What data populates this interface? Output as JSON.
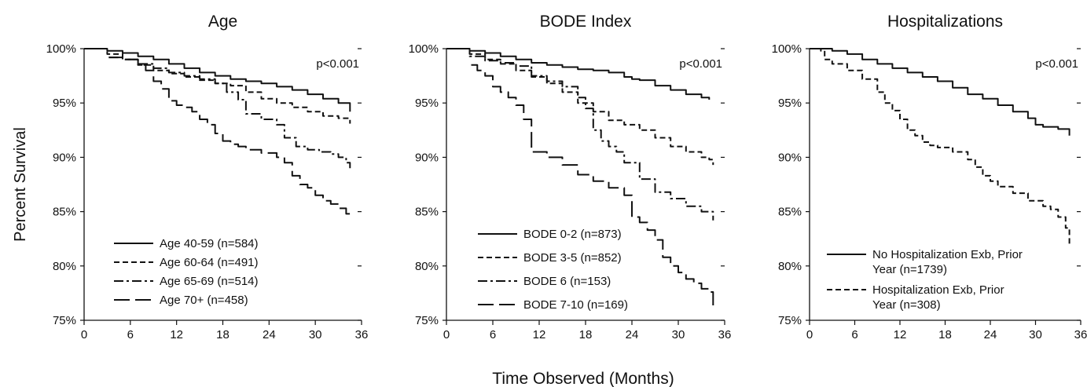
{
  "figure": {
    "ylabel": "Percent Survival",
    "xlabel": "Time Observed (Months)"
  },
  "chart_data": [
    {
      "type": "line",
      "title": "Age",
      "xlim": [
        0,
        36
      ],
      "ylim": [
        75,
        100
      ],
      "x_ticks": [
        0,
        6,
        12,
        18,
        24,
        30,
        36
      ],
      "y_ticks": [
        75,
        80,
        85,
        90,
        95,
        100
      ],
      "y_tick_labels": [
        "75%",
        "80%",
        "85%",
        "90%",
        "95%",
        "100%"
      ],
      "annotation": "p<0.001",
      "legend_position": "bottom-left",
      "series": [
        {
          "name": "Age 40-59 (n=584)",
          "style": "solid",
          "x": [
            0,
            3,
            5,
            7,
            9,
            11,
            13,
            15,
            17,
            19,
            21,
            23,
            25,
            27,
            29,
            31,
            33,
            34.5
          ],
          "y": [
            100,
            99.8,
            99.6,
            99.3,
            99.0,
            98.6,
            98.2,
            97.8,
            97.5,
            97.2,
            97.0,
            96.8,
            96.5,
            96.2,
            95.8,
            95.4,
            95.0,
            94.2
          ]
        },
        {
          "name": "Age 60-64 (n=491)",
          "style": "dashed",
          "x": [
            0,
            3,
            5,
            7,
            9,
            11,
            13,
            15,
            17,
            19,
            21,
            23,
            25,
            27,
            29,
            31,
            33,
            34.5
          ],
          "y": [
            100,
            99.5,
            99.0,
            98.5,
            98.0,
            97.7,
            97.4,
            97.1,
            96.8,
            96.6,
            96.0,
            95.4,
            95.0,
            94.6,
            94.2,
            93.8,
            93.6,
            93.1
          ]
        },
        {
          "name": "Age 65-69 (n=514)",
          "style": "dashdot",
          "x": [
            3.2,
            5,
            7,
            9,
            11,
            13,
            15,
            17,
            18.5,
            20,
            21,
            23,
            25,
            26,
            27.5,
            29,
            30.5,
            32,
            33,
            34,
            34.5
          ],
          "y": [
            99.2,
            99.0,
            98.6,
            98.2,
            97.8,
            97.5,
            97.2,
            96.8,
            96.0,
            95.3,
            94.0,
            93.5,
            93.0,
            91.8,
            91.0,
            90.7,
            90.5,
            90.3,
            90.0,
            89.5,
            89.0
          ]
        },
        {
          "name": "Age 70+ (n=458)",
          "style": "longdash",
          "x": [
            3.2,
            5,
            7,
            8,
            9,
            10,
            11,
            12,
            13,
            14,
            15,
            16,
            17,
            18,
            19,
            20,
            21,
            23,
            25,
            26,
            27,
            28,
            29,
            30,
            31,
            32,
            33,
            34,
            34.5
          ],
          "y": [
            99.2,
            99.0,
            98.5,
            98.0,
            97.0,
            96.3,
            95.2,
            94.8,
            94.6,
            94.2,
            93.5,
            93.0,
            92.2,
            91.5,
            91.2,
            91.0,
            90.7,
            90.4,
            90.0,
            89.5,
            88.3,
            87.5,
            87.2,
            86.5,
            86.0,
            85.7,
            85.3,
            84.8,
            84.5
          ]
        }
      ]
    },
    {
      "type": "line",
      "title": "BODE Index",
      "xlim": [
        0,
        36
      ],
      "ylim": [
        75,
        100
      ],
      "x_ticks": [
        0,
        6,
        12,
        18,
        24,
        30,
        36
      ],
      "y_ticks": [
        75,
        80,
        85,
        90,
        95,
        100
      ],
      "y_tick_labels": [
        "75%",
        "80%",
        "85%",
        "90%",
        "95%",
        "100%"
      ],
      "annotation": "p<0.001",
      "legend_position": "bottom-left",
      "series": [
        {
          "name": "BODE 0-2 (n=873)",
          "style": "solid",
          "x": [
            0,
            3,
            5,
            7,
            9,
            11,
            13,
            15,
            17,
            19,
            21,
            23,
            24,
            25,
            27,
            29,
            31,
            33,
            34
          ],
          "y": [
            100,
            99.8,
            99.6,
            99.3,
            99.0,
            98.7,
            98.5,
            98.3,
            98.1,
            98.0,
            97.8,
            97.4,
            97.2,
            97.1,
            96.6,
            96.2,
            95.8,
            95.5,
            95.3
          ]
        },
        {
          "name": "BODE 3-5 (n=852)",
          "style": "dashed",
          "x": [
            0,
            3,
            5,
            7,
            9,
            11,
            13,
            15,
            17,
            19,
            21,
            23,
            25,
            27,
            29,
            31,
            33,
            34,
            34.5
          ],
          "y": [
            100,
            99.5,
            99.0,
            98.6,
            98.0,
            97.4,
            96.8,
            96.0,
            95.0,
            94.2,
            93.4,
            93.0,
            92.5,
            91.8,
            91.0,
            90.5,
            90.0,
            89.8,
            89.3
          ]
        },
        {
          "name": "BODE 6 (n=153)",
          "style": "dashdot",
          "x": [
            0,
            3,
            5,
            7,
            9,
            11,
            13,
            15,
            17,
            18,
            19,
            20,
            21,
            22,
            23,
            25,
            27,
            29,
            31,
            33,
            34.5
          ],
          "y": [
            100,
            99.3,
            98.9,
            98.7,
            98.4,
            97.5,
            97.0,
            96.5,
            95.5,
            94.5,
            92.5,
            91.5,
            91.0,
            90.5,
            89.5,
            88.0,
            86.8,
            86.2,
            85.5,
            85.0,
            84.2
          ]
        },
        {
          "name": "BODE 7-10 (n=169)",
          "style": "longdash",
          "x": [
            3.2,
            4,
            5,
            6,
            7,
            8,
            9,
            10,
            11,
            13,
            15,
            17,
            19,
            21,
            23,
            24,
            25,
            26,
            27,
            28,
            29,
            30,
            31,
            32,
            33,
            34,
            34.5
          ],
          "y": [
            98.5,
            98.0,
            97.5,
            96.5,
            96.0,
            95.5,
            94.8,
            93.5,
            90.5,
            90.0,
            89.3,
            88.4,
            87.8,
            87.2,
            86.5,
            84.5,
            84.0,
            83.3,
            82.4,
            80.8,
            80.0,
            79.4,
            78.8,
            78.4,
            77.9,
            77.6,
            76.3
          ]
        }
      ]
    },
    {
      "type": "line",
      "title": "Hospitalizations",
      "xlim": [
        0,
        36
      ],
      "ylim": [
        75,
        100
      ],
      "x_ticks": [
        0,
        6,
        12,
        18,
        24,
        30,
        36
      ],
      "y_ticks": [
        75,
        80,
        85,
        90,
        95,
        100
      ],
      "y_tick_labels": [
        "75%",
        "80%",
        "85%",
        "90%",
        "95%",
        "100%"
      ],
      "annotation": "p<0.001",
      "legend_position": "bottom-left",
      "series": [
        {
          "name": "No Hospitalization Exb, Prior Year (n=1739)",
          "legend_lines": [
            "No Hospitalization Exb, Prior",
            "Year (n=1739)"
          ],
          "style": "solid",
          "x": [
            0,
            3,
            5,
            7,
            9,
            11,
            13,
            15,
            17,
            19,
            21,
            23,
            25,
            27,
            29,
            30,
            31,
            33,
            34.5
          ],
          "y": [
            100,
            99.8,
            99.5,
            99.0,
            98.6,
            98.2,
            97.8,
            97.4,
            97.0,
            96.4,
            95.8,
            95.4,
            94.8,
            94.2,
            93.6,
            93.0,
            92.8,
            92.6,
            92.0
          ]
        },
        {
          "name": "Hospitalization Exb, Prior Year (n=308)",
          "legend_lines": [
            "Hospitalization Exb, Prior",
            "Year (n=308)"
          ],
          "style": "dashed",
          "x": [
            0,
            1.5,
            2,
            3,
            5,
            7,
            9,
            10,
            11,
            12,
            13,
            14,
            15,
            16,
            17,
            19,
            21,
            22,
            23,
            24,
            25,
            27,
            29,
            31,
            32,
            33,
            34,
            34.5
          ],
          "y": [
            100,
            99.8,
            99.0,
            98.6,
            98.0,
            97.2,
            96.0,
            95.0,
            94.3,
            93.5,
            92.5,
            92.0,
            91.4,
            91.1,
            90.9,
            90.5,
            89.8,
            89.1,
            88.3,
            87.8,
            87.3,
            86.7,
            86.0,
            85.5,
            85.2,
            84.5,
            83.5,
            82.0
          ]
        }
      ]
    }
  ]
}
